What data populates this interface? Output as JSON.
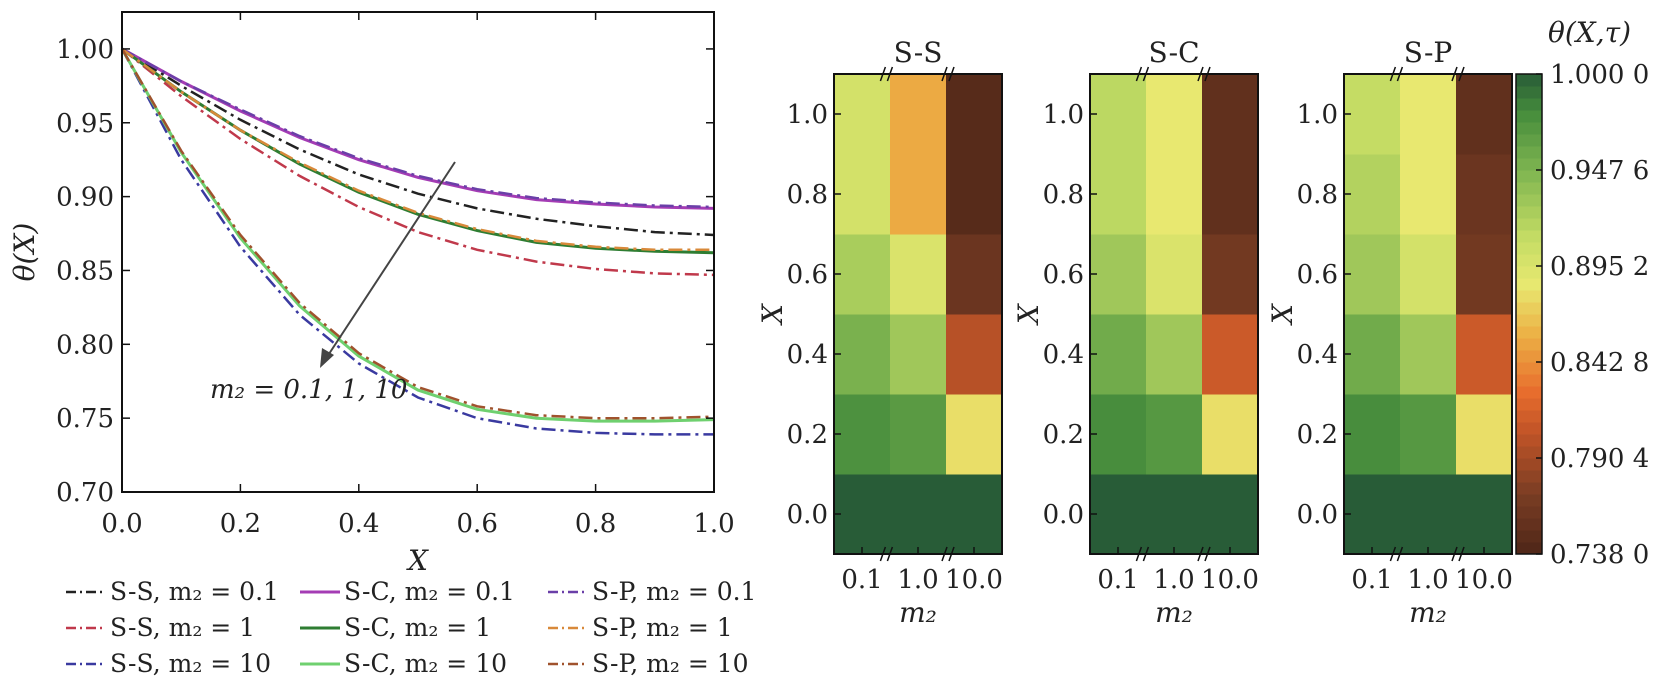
{
  "line_plot": {
    "ylabel": "θ(X)",
    "xlabel": "X",
    "annotation": "m₂ = 0.1, 1, 10",
    "xticks": [
      "0.0",
      "0.2",
      "0.4",
      "0.6",
      "0.8",
      "1.0"
    ],
    "yticks": [
      "0.70",
      "0.75",
      "0.80",
      "0.85",
      "0.90",
      "0.95",
      "1.00"
    ]
  },
  "heatmaps": {
    "panels": [
      {
        "title": "S-S",
        "ylabel": "X",
        "xlabel": "m₂"
      },
      {
        "title": "S-C",
        "ylabel": "X",
        "xlabel": "m₂"
      },
      {
        "title": "S-P",
        "ylabel": "X",
        "xlabel": "m₂"
      }
    ],
    "xticks": [
      "0.1",
      "1.0",
      "10.0"
    ],
    "yticks": [
      "1.0",
      "0.8",
      "0.6",
      "0.4",
      "0.2",
      "0.0"
    ],
    "colorbar": {
      "label": "θ(X,τ)",
      "ticks": [
        "1.000 0",
        "0.947 6",
        "0.895 2",
        "0.842 8",
        "0.790 4",
        "0.738 0"
      ]
    }
  },
  "chart_data": [
    {
      "type": "line",
      "xlabel": "X",
      "ylabel": "θ(X)",
      "xlim": [
        0,
        1
      ],
      "ylim": [
        0.7,
        1.025
      ],
      "grid": false,
      "legend_position": "below",
      "annotation": "m₂ = 0.1, 1, 10",
      "x": [
        0,
        0.1,
        0.2,
        0.3,
        0.4,
        0.5,
        0.6,
        0.7,
        0.8,
        0.9,
        1.0
      ],
      "series": [
        {
          "name": "S-S, m₂ = 0.1",
          "color": "#222222",
          "dash": "dashdot",
          "values": [
            1.0,
            0.975,
            0.952,
            0.932,
            0.915,
            0.902,
            0.892,
            0.885,
            0.88,
            0.876,
            0.874
          ]
        },
        {
          "name": "S-S, m₂ = 1",
          "color": "#c0394b",
          "dash": "dashdot",
          "values": [
            1.0,
            0.968,
            0.939,
            0.914,
            0.893,
            0.876,
            0.864,
            0.856,
            0.851,
            0.848,
            0.847
          ]
        },
        {
          "name": "S-S, m₂ = 10",
          "color": "#3a3aa0",
          "dash": "dashdot",
          "values": [
            1.0,
            0.925,
            0.866,
            0.82,
            0.787,
            0.764,
            0.75,
            0.743,
            0.74,
            0.739,
            0.739
          ]
        },
        {
          "name": "S-C, m₂ = 0.1",
          "color": "#a43cb4",
          "dash": "solid",
          "values": [
            1.0,
            0.978,
            0.958,
            0.94,
            0.925,
            0.913,
            0.904,
            0.898,
            0.895,
            0.893,
            0.892
          ]
        },
        {
          "name": "S-C, m₂ = 1",
          "color": "#2e7d32",
          "dash": "solid",
          "values": [
            1.0,
            0.971,
            0.945,
            0.922,
            0.903,
            0.888,
            0.877,
            0.869,
            0.865,
            0.863,
            0.862
          ]
        },
        {
          "name": "S-C, m₂ = 10",
          "color": "#6fd06f",
          "dash": "solid",
          "values": [
            1.0,
            0.93,
            0.872,
            0.826,
            0.792,
            0.769,
            0.756,
            0.75,
            0.748,
            0.748,
            0.749
          ]
        },
        {
          "name": "S-P, m₂ = 0.1",
          "color": "#6a3fa8",
          "dash": "dashdot",
          "values": [
            1.0,
            0.978,
            0.959,
            0.941,
            0.926,
            0.914,
            0.905,
            0.899,
            0.896,
            0.894,
            0.893
          ]
        },
        {
          "name": "S-P, m₂ = 1",
          "color": "#d8893a",
          "dash": "dashdot",
          "values": [
            1.0,
            0.971,
            0.945,
            0.923,
            0.904,
            0.889,
            0.878,
            0.87,
            0.866,
            0.864,
            0.864
          ]
        },
        {
          "name": "S-P, m₂ = 10",
          "color": "#a0522d",
          "dash": "dashdot",
          "values": [
            1.0,
            0.931,
            0.874,
            0.828,
            0.794,
            0.771,
            0.758,
            0.752,
            0.75,
            0.75,
            0.751
          ]
        }
      ]
    },
    {
      "type": "heatmap",
      "title": "S-S",
      "xlabel": "m₂",
      "ylabel": "X",
      "x_categories": [
        "0.1",
        "1.0",
        "10.0"
      ],
      "y_values": [
        0.0,
        0.2,
        0.4,
        0.6,
        0.8,
        1.0
      ],
      "z": [
        [
          1.0,
          1.0,
          1.0
        ],
        [
          0.975,
          0.968,
          0.88
        ],
        [
          0.95,
          0.93,
          0.8
        ],
        [
          0.925,
          0.895,
          0.76
        ],
        [
          0.9,
          0.855,
          0.745
        ],
        [
          0.9,
          0.855,
          0.745
        ]
      ]
    },
    {
      "type": "heatmap",
      "title": "S-C",
      "xlabel": "m₂",
      "ylabel": "X",
      "x_categories": [
        "0.1",
        "1.0",
        "10.0"
      ],
      "y_values": [
        0.0,
        0.2,
        0.4,
        0.6,
        0.8,
        1.0
      ],
      "z": [
        [
          1.0,
          1.0,
          1.0
        ],
        [
          0.978,
          0.97,
          0.88
        ],
        [
          0.955,
          0.93,
          0.81
        ],
        [
          0.93,
          0.895,
          0.765
        ],
        [
          0.915,
          0.885,
          0.752
        ],
        [
          0.915,
          0.885,
          0.752
        ]
      ]
    },
    {
      "type": "heatmap",
      "title": "S-P",
      "xlabel": "m₂",
      "ylabel": "X",
      "x_categories": [
        "0.1",
        "1.0",
        "10.0"
      ],
      "y_values": [
        0.0,
        0.2,
        0.4,
        0.6,
        0.8,
        1.0
      ],
      "z": [
        [
          1.0,
          1.0,
          1.0
        ],
        [
          0.978,
          0.97,
          0.88
        ],
        [
          0.955,
          0.93,
          0.81
        ],
        [
          0.93,
          0.9,
          0.765
        ],
        [
          0.92,
          0.885,
          0.76
        ],
        [
          0.91,
          0.885,
          0.752
        ]
      ]
    }
  ]
}
